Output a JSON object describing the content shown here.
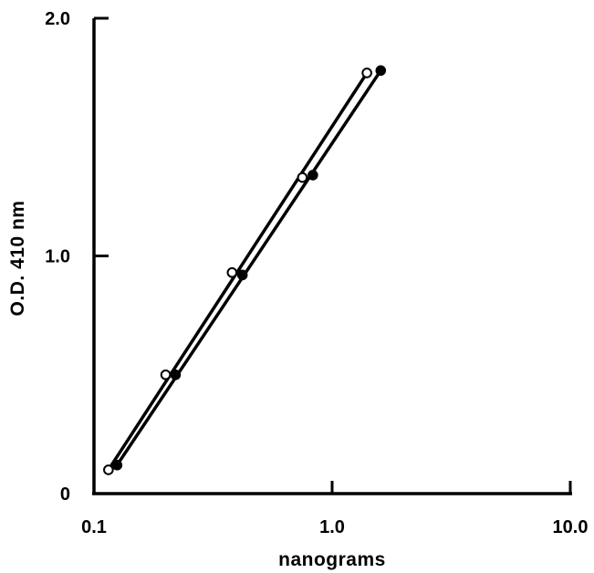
{
  "chart_data": {
    "type": "line",
    "title": "",
    "xlabel": "nanograms",
    "ylabel": "O.D. 410 nm",
    "xscale": "log",
    "xlim": [
      0.1,
      10.0
    ],
    "ylim": [
      0,
      2.0
    ],
    "xticks": [
      {
        "value": 0.1,
        "label": "0.1"
      },
      {
        "value": 1.0,
        "label": "1.0"
      },
      {
        "value": 10.0,
        "label": "10.0"
      }
    ],
    "yticks": [
      {
        "value": 0,
        "label": "0"
      },
      {
        "value": 1.0,
        "label": "1.0"
      },
      {
        "value": 2.0,
        "label": "2.0"
      }
    ],
    "grid": false,
    "legend": "none",
    "series": [
      {
        "marker": "open-circle",
        "x": [
          0.115,
          0.2,
          0.38,
          0.75,
          1.4
        ],
        "y": [
          0.1,
          0.5,
          0.93,
          1.33,
          1.77
        ]
      },
      {
        "marker": "filled-circle",
        "x": [
          0.125,
          0.22,
          0.42,
          0.83,
          1.6
        ],
        "y": [
          0.12,
          0.5,
          0.92,
          1.34,
          1.78
        ]
      }
    ]
  }
}
